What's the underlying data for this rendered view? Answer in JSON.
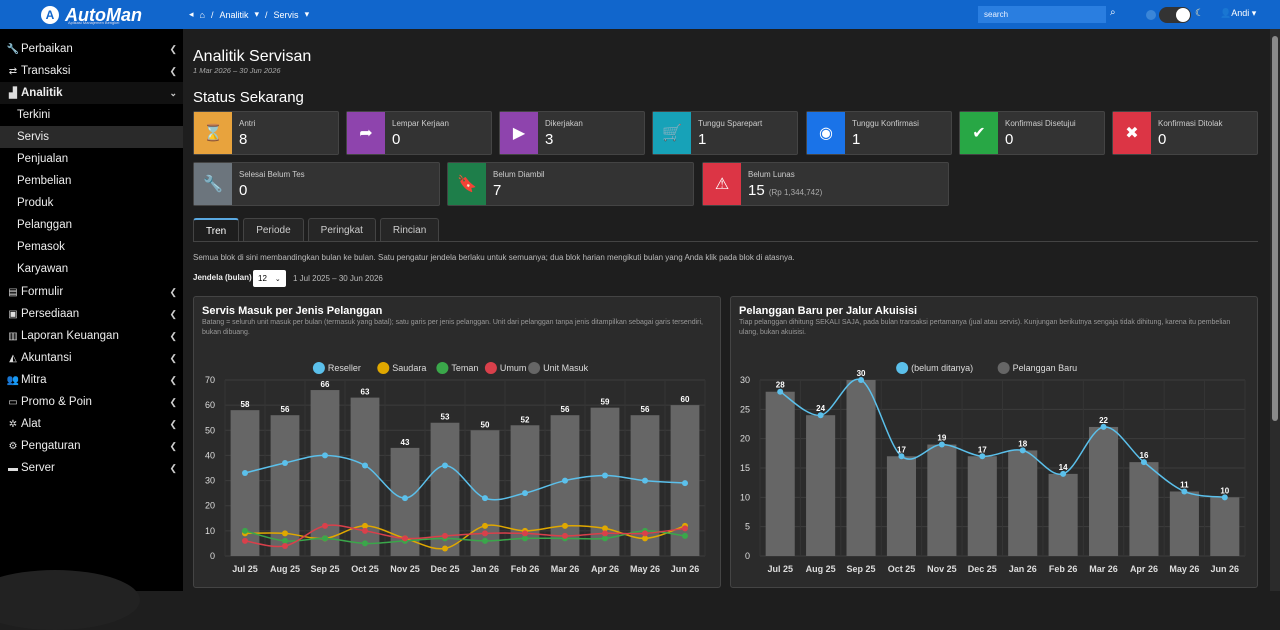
{
  "header": {
    "brand": "AutoMan",
    "brand_tagline": "Aplikasi Manajemen Bengkel",
    "breadcrumb": [
      "Analitik",
      "Servis"
    ],
    "search_placeholder": "search",
    "user_name": "Andi"
  },
  "sidebar": {
    "items": [
      {
        "label": "Perbaikan",
        "icon": "wrench-icon"
      },
      {
        "label": "Transaksi",
        "icon": "exchange-icon"
      },
      {
        "label": "Analitik",
        "icon": "chart-icon",
        "expanded": true
      },
      {
        "label": "Formulir",
        "icon": "form-icon"
      },
      {
        "label": "Persediaan",
        "icon": "box-icon"
      },
      {
        "label": "Laporan Keuangan",
        "icon": "report-icon"
      },
      {
        "label": "Akuntansi",
        "icon": "area-chart-icon"
      },
      {
        "label": "Mitra",
        "icon": "users-icon"
      },
      {
        "label": "Promo & Poin",
        "icon": "ticket-icon"
      },
      {
        "label": "Alat",
        "icon": "tools-icon"
      },
      {
        "label": "Pengaturan",
        "icon": "gear-icon"
      },
      {
        "label": "Server",
        "icon": "server-icon"
      }
    ],
    "analitik_sub": [
      "Terkini",
      "Servis",
      "Penjualan",
      "Pembelian",
      "Produk",
      "Pelanggan",
      "Pemasok",
      "Karyawan"
    ],
    "active_sub": "Servis"
  },
  "page": {
    "title": "Analitik Servisan",
    "date_range": "1 Mar 2026 – 30 Jun 2026",
    "status_title": "Status Sekarang"
  },
  "status": [
    {
      "label": "Antri",
      "value": "8",
      "color": "#e8a33d",
      "icon": "hourglass-icon"
    },
    {
      "label": "Lempar Kerjaan",
      "value": "0",
      "color": "#8e44ad",
      "icon": "share-icon"
    },
    {
      "label": "Dikerjakan",
      "value": "3",
      "color": "#8e44ad",
      "icon": "play-icon"
    },
    {
      "label": "Tunggu Sparepart",
      "value": "1",
      "color": "#17a2b8",
      "icon": "cart-icon"
    },
    {
      "label": "Tunggu Konfirmasi",
      "value": "1",
      "color": "#1a73e8",
      "icon": "eye-icon"
    },
    {
      "label": "Konfirmasi Disetujui",
      "value": "0",
      "color": "#28a745",
      "icon": "check-icon"
    },
    {
      "label": "Konfirmasi Ditolak",
      "value": "0",
      "color": "#dc3545",
      "icon": "times-icon"
    },
    {
      "label": "Selesai Belum Tes",
      "value": "0",
      "color": "#6c757d",
      "icon": "wrench-icon"
    },
    {
      "label": "Belum Diambil",
      "value": "7",
      "color": "#1e7e4a",
      "icon": "bookmark-icon"
    },
    {
      "label": "Belum Lunas",
      "value": "15",
      "extra": "(Rp 1,344,742)",
      "color": "#dc3545",
      "icon": "warning-icon"
    }
  ],
  "tabs": [
    "Tren",
    "Periode",
    "Peringkat",
    "Rincian"
  ],
  "active_tab": "Tren",
  "trend": {
    "note": "Semua blok di sini membandingkan bulan ke bulan. Satu pengatur jendela berlaku untuk semuanya; dua blok harian mengikuti bulan yang Anda klik pada blok di atasnya.",
    "window_label": "Jendela (bulan)",
    "window_value": "12",
    "window_range": "1 Jul 2025 – 30 Jun 2026"
  },
  "chart_data": [
    {
      "type": "bar",
      "title": "Servis Masuk per Jenis Pelanggan",
      "description": "Batang = seluruh unit masuk per bulan (termasuk yang batal); satu garis per jenis pelanggan. Unit dari pelanggan tanpa jenis ditampilkan sebagai garis tersendiri, bukan dibuang.",
      "categories": [
        "Jul 25",
        "Aug 25",
        "Sep 25",
        "Oct 25",
        "Nov 25",
        "Dec 25",
        "Jan 26",
        "Feb 26",
        "Mar 26",
        "Apr 26",
        "May 26",
        "Jun 26"
      ],
      "ylim": [
        0,
        70
      ],
      "yticks": [
        0,
        10,
        20,
        30,
        40,
        50,
        60,
        70
      ],
      "legend_position": "top",
      "grid": true,
      "series": [
        {
          "name": "Reseller",
          "kind": "line",
          "color": "#5bc0eb",
          "values": [
            33,
            37,
            40,
            36,
            23,
            36,
            23,
            25,
            30,
            32,
            30,
            29
          ]
        },
        {
          "name": "Saudara",
          "kind": "line",
          "color": "#e0a800",
          "values": [
            9,
            9,
            7,
            12,
            7,
            3,
            12,
            10,
            12,
            11,
            7,
            12
          ]
        },
        {
          "name": "Teman",
          "kind": "line",
          "color": "#3aa74a",
          "values": [
            10,
            6,
            7,
            5,
            6,
            7,
            6,
            7,
            7,
            7,
            10,
            8
          ]
        },
        {
          "name": "Umum",
          "kind": "line",
          "color": "#d9404b",
          "values": [
            6,
            4,
            12,
            10,
            7,
            8,
            9,
            9,
            8,
            9,
            9,
            11
          ]
        },
        {
          "name": "Unit Masuk",
          "kind": "bar",
          "color": "#666666",
          "values": [
            58,
            56,
            66,
            63,
            43,
            53,
            50,
            52,
            56,
            59,
            56,
            60
          ]
        }
      ]
    },
    {
      "type": "bar",
      "title": "Pelanggan Baru per Jalur Akuisisi",
      "description": "Tiap pelanggan dihitung SEKALI SAJA, pada bulan transaksi pertamanya (jual atau servis). Kunjungan berikutnya sengaja tidak dihitung, karena itu pembelian ulang, bukan akuisisi.",
      "categories": [
        "Jul 25",
        "Aug 25",
        "Sep 25",
        "Oct 25",
        "Nov 25",
        "Dec 25",
        "Jan 26",
        "Feb 26",
        "Mar 26",
        "Apr 26",
        "May 26",
        "Jun 26"
      ],
      "ylim": [
        0,
        30
      ],
      "yticks": [
        0,
        5,
        10,
        15,
        20,
        25,
        30
      ],
      "legend_position": "top",
      "grid": true,
      "series": [
        {
          "name": "(belum ditanya)",
          "kind": "line",
          "color": "#5bc0eb",
          "values": [
            28,
            24,
            30,
            17,
            19,
            17,
            18,
            14,
            22,
            16,
            11,
            10
          ]
        },
        {
          "name": "Pelanggan Baru",
          "kind": "bar",
          "color": "#666666",
          "values": [
            28,
            24,
            30,
            17,
            19,
            17,
            18,
            14,
            22,
            16,
            11,
            10
          ]
        }
      ]
    }
  ]
}
